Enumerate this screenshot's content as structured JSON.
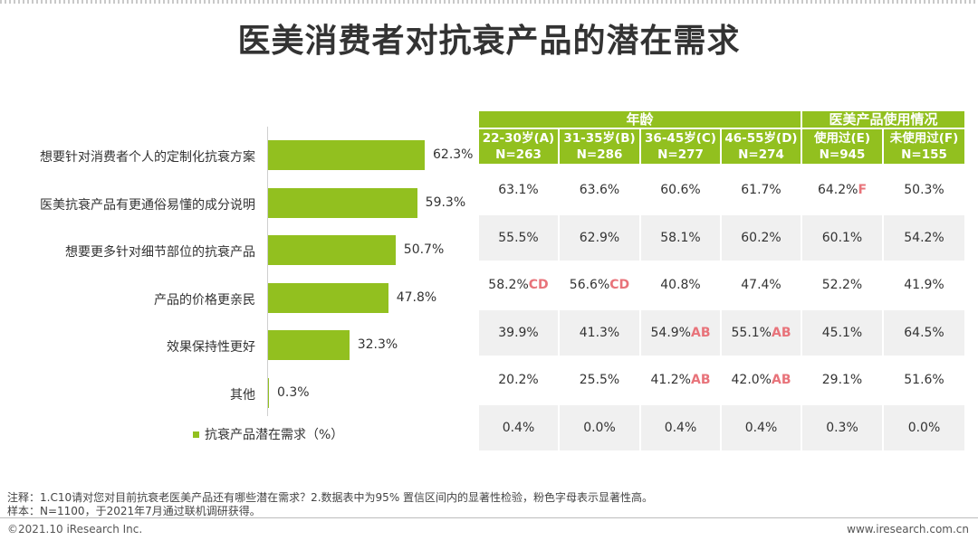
{
  "title": "医美消费者对抗衰产品的潜在需求",
  "colors": {
    "accent": "#92c01f",
    "significance": "#e8737a",
    "shade": "#f0f0f0"
  },
  "chart_data": {
    "type": "bar",
    "orientation": "horizontal",
    "categories": [
      "想要针对消费者个人的定制化抗衰方案",
      "医美抗衰产品有更通俗易懂的成分说明",
      "想要更多针对细节部位的抗衰产品",
      "产品的价格更亲民",
      "效果保持性更好",
      "其他"
    ],
    "values": [
      62.3,
      59.3,
      50.7,
      47.8,
      32.3,
      0.3
    ],
    "value_labels": [
      "62.3%",
      "59.3%",
      "50.7%",
      "47.8%",
      "32.3%",
      "0.3%"
    ],
    "legend": "抗衰产品潜在需求（%）",
    "xlim": [
      0,
      100
    ]
  },
  "table": {
    "group_headers": [
      "年龄",
      "医美产品使用情况"
    ],
    "columns": [
      {
        "label": "22-30岁(A)",
        "n": "N=263"
      },
      {
        "label": "31-35岁(B)",
        "n": "N=286"
      },
      {
        "label": "36-45岁(C)",
        "n": "N=277"
      },
      {
        "label": "46-55岁(D)",
        "n": "N=274"
      },
      {
        "label": "使用过(E)",
        "n": "N=945"
      },
      {
        "label": "未使用过(F)",
        "n": "N=155"
      }
    ],
    "rows": [
      [
        [
          "63.1%",
          ""
        ],
        [
          "63.6%",
          ""
        ],
        [
          "60.6%",
          ""
        ],
        [
          "61.7%",
          ""
        ],
        [
          "64.2%",
          "F"
        ],
        [
          "50.3%",
          ""
        ]
      ],
      [
        [
          "55.5%",
          ""
        ],
        [
          "62.9%",
          ""
        ],
        [
          "58.1%",
          ""
        ],
        [
          "60.2%",
          ""
        ],
        [
          "60.1%",
          ""
        ],
        [
          "54.2%",
          ""
        ]
      ],
      [
        [
          "58.2%",
          "CD"
        ],
        [
          "56.6%",
          "CD"
        ],
        [
          "40.8%",
          ""
        ],
        [
          "47.4%",
          ""
        ],
        [
          "52.2%",
          ""
        ],
        [
          "41.9%",
          ""
        ]
      ],
      [
        [
          "39.9%",
          ""
        ],
        [
          "41.3%",
          ""
        ],
        [
          "54.9%",
          "AB"
        ],
        [
          "55.1%",
          "AB"
        ],
        [
          "45.1%",
          ""
        ],
        [
          "64.5%",
          ""
        ]
      ],
      [
        [
          "20.2%",
          ""
        ],
        [
          "25.5%",
          ""
        ],
        [
          "41.2%",
          "AB"
        ],
        [
          "42.0%",
          "AB"
        ],
        [
          "29.1%",
          ""
        ],
        [
          "51.6%",
          ""
        ]
      ],
      [
        [
          "0.4%",
          ""
        ],
        [
          "0.0%",
          ""
        ],
        [
          "0.4%",
          ""
        ],
        [
          "0.4%",
          ""
        ],
        [
          "0.3%",
          ""
        ],
        [
          "0.0%",
          ""
        ]
      ]
    ]
  },
  "notes": {
    "line1": "注释：1.C10请对您对目前抗衰老医美产品还有哪些潜在需求？2.数据表中为95% 置信区间内的显著性检验，粉色字母表示显著性高。",
    "line2": "样本：N=1100，于2021年7月通过联机调研获得。"
  },
  "footer": {
    "copyright": "©2021.10 iResearch Inc.",
    "url": "www.iresearch.com.cn"
  }
}
